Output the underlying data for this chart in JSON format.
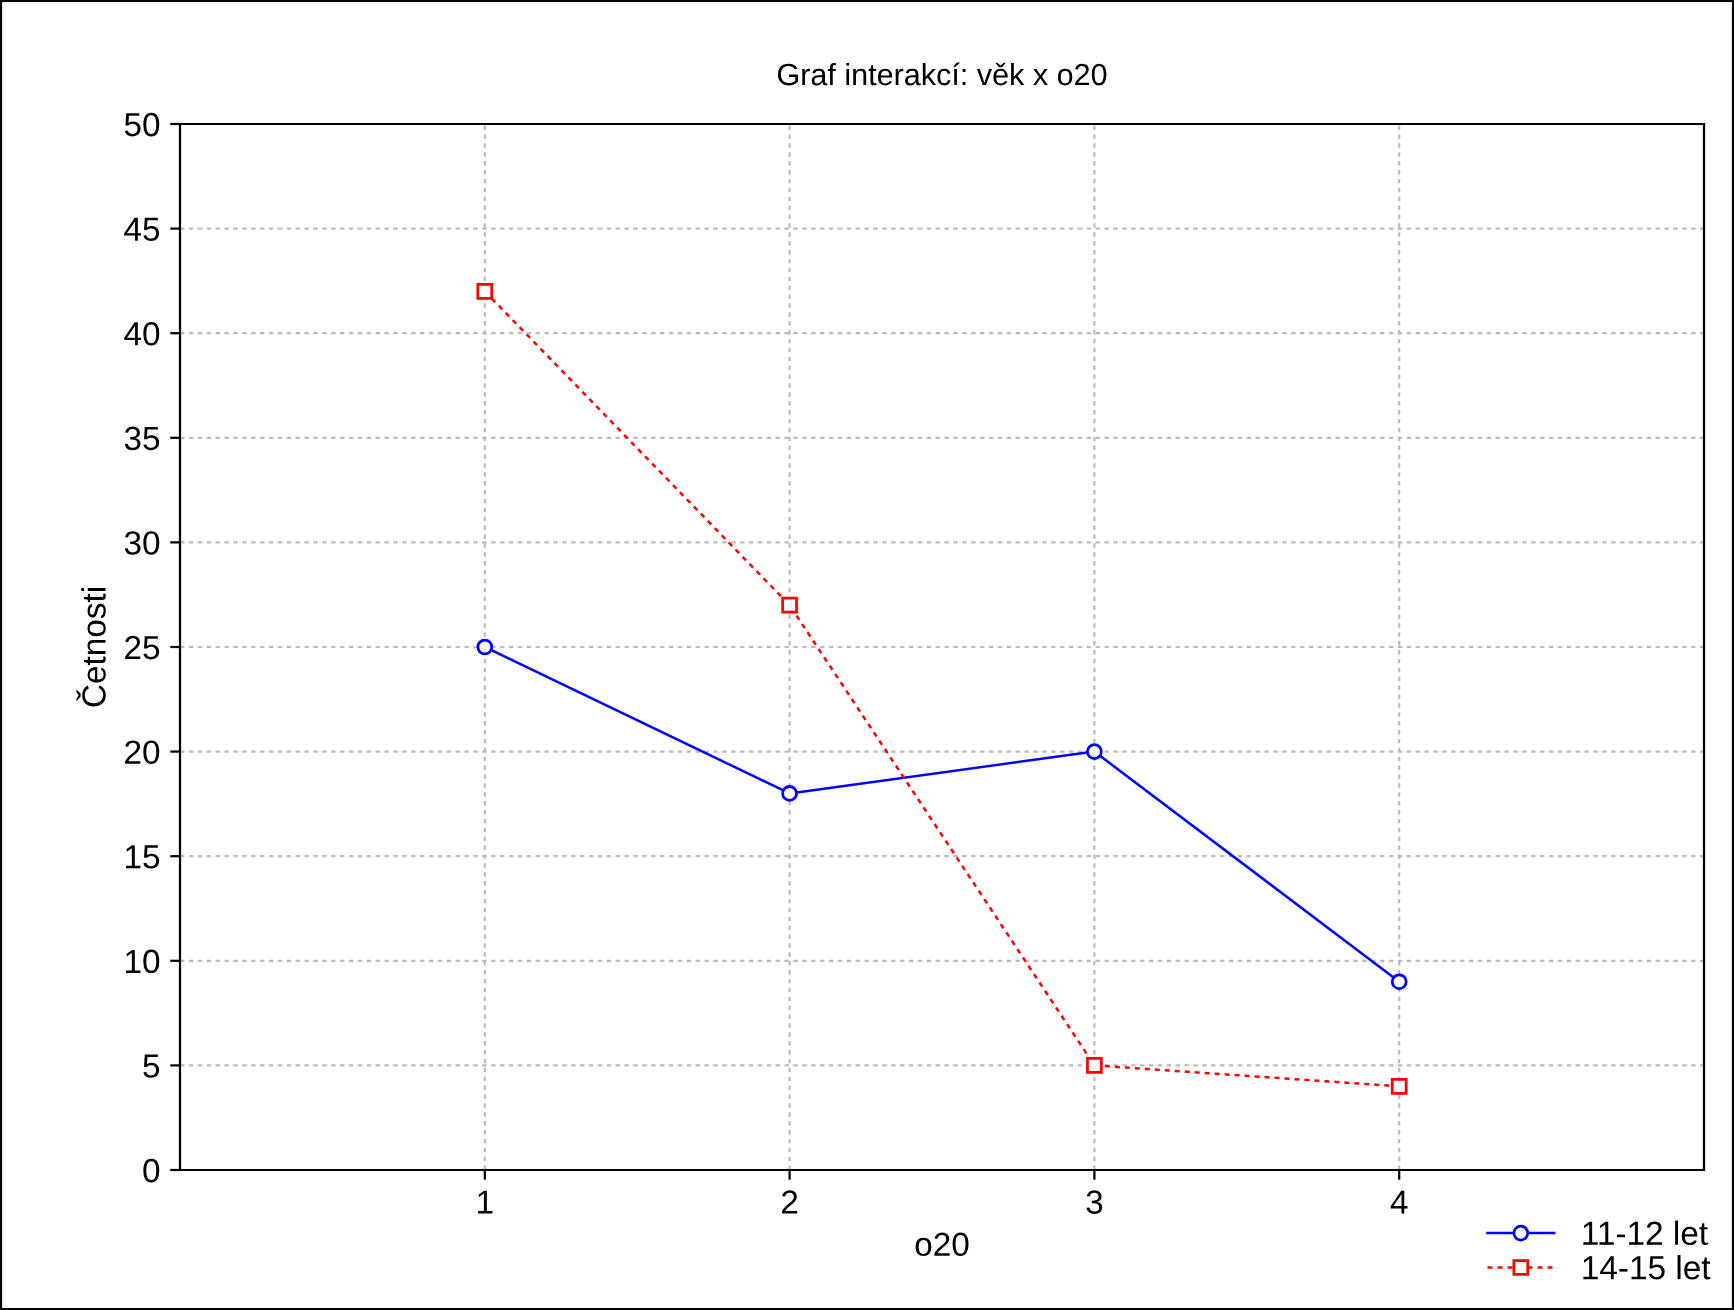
{
  "chart_data": {
    "type": "line",
    "title": "Graf interakcí: věk x o20",
    "xlabel": "o20",
    "ylabel": "Četnosti",
    "x": [
      1,
      2,
      3,
      4
    ],
    "xlim": [
      0,
      5
    ],
    "xticks": [
      1,
      2,
      3,
      4
    ],
    "ylim": [
      0,
      50
    ],
    "yticks": [
      0,
      5,
      10,
      15,
      20,
      25,
      30,
      35,
      40,
      45,
      50
    ],
    "grid": true,
    "legend": "bottom right",
    "series": [
      {
        "name": "11-12 let",
        "color": "#0000ff",
        "values": [
          25,
          18,
          20,
          9
        ],
        "marker": "circle",
        "line_style": "solid"
      },
      {
        "name": "14-15 let",
        "color": "#ff0000",
        "values": [
          42,
          27,
          5,
          4
        ],
        "marker": "square",
        "line_style": "dotted"
      }
    ]
  }
}
